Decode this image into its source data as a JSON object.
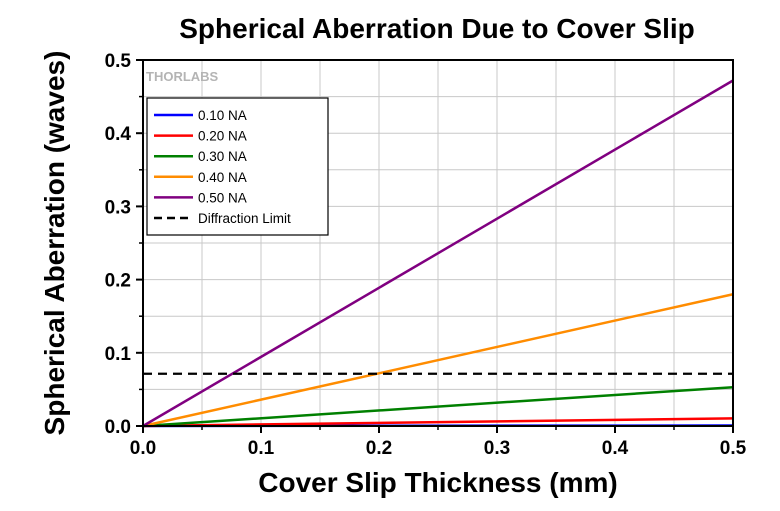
{
  "chart_data": {
    "type": "line",
    "title": "Spherical Aberration Due to Cover Slip",
    "xlabel": "Cover Slip Thickness (mm)",
    "ylabel": "Spherical Aberration (waves)",
    "xlim": [
      0,
      0.5
    ],
    "ylim": [
      0,
      0.5
    ],
    "x_ticks": [
      "0.0",
      "0.1",
      "0.2",
      "0.3",
      "0.4",
      "0.5"
    ],
    "y_ticks": [
      "0.0",
      "0.1",
      "0.2",
      "0.3",
      "0.4",
      "0.5"
    ],
    "grid": true,
    "legend_position": "top-left",
    "watermark": "THORLABS",
    "x": [
      0.0,
      0.5
    ],
    "series": [
      {
        "name": "0.10 NA",
        "color": "#0000ff",
        "style": "solid",
        "values": [
          0.0,
          0.0007
        ]
      },
      {
        "name": "0.20 NA",
        "color": "#ff0000",
        "style": "solid",
        "values": [
          0.0,
          0.0105
        ]
      },
      {
        "name": "0.30 NA",
        "color": "#008000",
        "style": "solid",
        "values": [
          0.0,
          0.053
        ]
      },
      {
        "name": "0.40 NA",
        "color": "#ff8c00",
        "style": "solid",
        "values": [
          0.0,
          0.18
        ]
      },
      {
        "name": "0.50 NA",
        "color": "#800080",
        "style": "solid",
        "values": [
          0.0,
          0.472
        ]
      },
      {
        "name": "Diffraction Limit",
        "color": "#000000",
        "style": "dashed",
        "values": [
          0.0714,
          0.0714
        ]
      }
    ]
  }
}
